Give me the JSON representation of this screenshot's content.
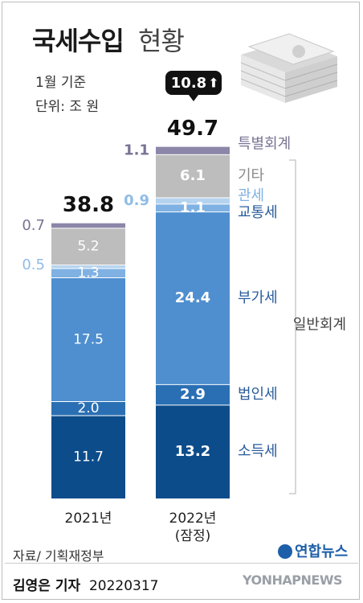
{
  "header": {
    "title_main": "국세수입",
    "title_sub": "현황",
    "basis": "1월 기준",
    "unit": "단위: 조 원"
  },
  "chart_data": {
    "type": "bar",
    "stacked": true,
    "categories": [
      "2021년",
      "2022년"
    ],
    "category_notes": [
      "",
      "(잠정)"
    ],
    "totals": [
      38.8,
      49.7
    ],
    "change_badge": {
      "text": "10.8",
      "symbol": "⬆"
    },
    "series": [
      {
        "name": "소득세",
        "values": [
          11.7,
          13.2
        ],
        "color": "#0d4c8a"
      },
      {
        "name": "법인세",
        "values": [
          2.0,
          2.9
        ],
        "color": "#2a6fb3"
      },
      {
        "name": "부가세",
        "values": [
          17.5,
          24.4
        ],
        "color": "#4f8fcf"
      },
      {
        "name": "교통세",
        "values": [
          1.3,
          1.1
        ],
        "color": "#7fb1e3"
      },
      {
        "name": "관세",
        "values": [
          0.5,
          0.9
        ],
        "color": "#b4d3ef"
      },
      {
        "name": "기타",
        "values": [
          5.2,
          6.1
        ],
        "color": "#bdbdbd"
      },
      {
        "name": "특별회계",
        "values": [
          0.7,
          1.1
        ],
        "color": "#8c86a8"
      }
    ],
    "group_label": "일반회계",
    "label_colors": {
      "dark": "#2a5d9c",
      "special": "#7a7394",
      "etc": "#8a8a8a"
    }
  },
  "footer": {
    "source": "자료/ 기획재정부",
    "reporter": "김영은 기자",
    "date": "20220317",
    "logo1": "연합뉴스",
    "logo2": "YONHAPNEWS"
  }
}
